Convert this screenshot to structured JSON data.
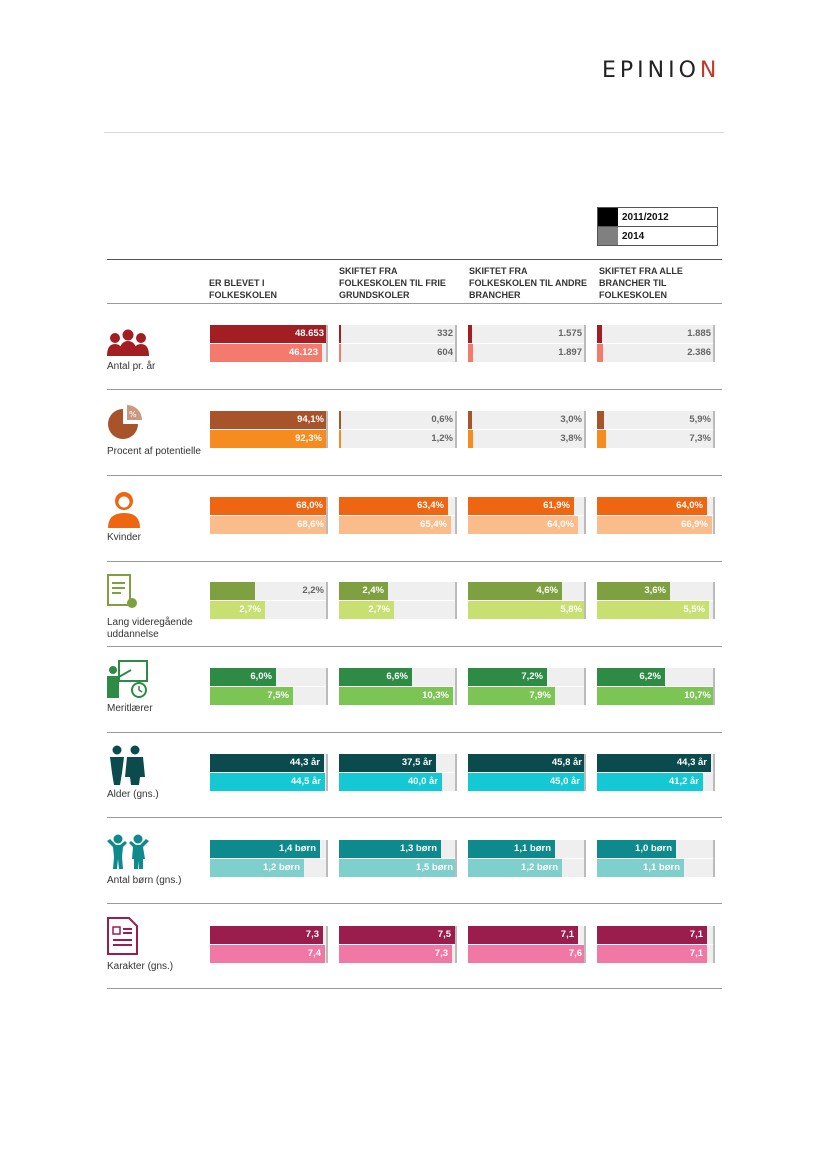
{
  "logo": {
    "text": "EPINIO",
    "last": "N"
  },
  "legend": [
    {
      "label": "2011/2012",
      "color": "#000000"
    },
    {
      "label": "2014",
      "color": "#808080"
    }
  ],
  "columns": [
    "ER BLEVET I FOLKESKOLEN",
    "SKIFTET FRA FOLKESKOLEN TIL FRIE GRUNDSKOLER",
    "SKIFTET FRA FOLKESKOLEN TIL ANDRE BRANCHER",
    "SKIFTET FRA ALLE BRANCHER TIL FOLKESKOLEN"
  ],
  "chart_data": {
    "type": "bar",
    "categories": [
      "ER BLEVET I FOLKESKOLEN",
      "SKIFTET FRA FOLKESKOLEN TIL FRIE GRUNDSKOLER",
      "SKIFTET FRA FOLKESKOLEN TIL ANDRE BRANCHER",
      "SKIFTET FRA ALLE BRANCHER TIL FOLKESKOLEN"
    ],
    "legend": [
      "2011/2012",
      "2014"
    ],
    "rows": [
      {
        "label": "Antal pr. år",
        "icon": "people-group-icon",
        "colors": [
          "#a31e22",
          "#f47a6e"
        ],
        "values": [
          [
            48653,
            46123
          ],
          [
            332,
            604
          ],
          [
            1575,
            1897
          ],
          [
            1885,
            2386
          ]
        ],
        "labels": [
          [
            "48.653",
            "46.123"
          ],
          [
            "332",
            "604"
          ],
          [
            "1.575",
            "1.897"
          ],
          [
            "1.885",
            "2.386"
          ]
        ],
        "max": 48653
      },
      {
        "label": "Procent af potentielle",
        "icon": "pie-percent-icon",
        "colors": [
          "#a9532b",
          "#f68b1f"
        ],
        "values": [
          [
            94.1,
            92.3
          ],
          [
            0.6,
            1.2
          ],
          [
            3.0,
            3.8
          ],
          [
            5.9,
            7.3
          ]
        ],
        "labels": [
          [
            "94,1%",
            "92,3%"
          ],
          [
            "0,6%",
            "1,2%"
          ],
          [
            "3,0%",
            "3,8%"
          ],
          [
            "5,9%",
            "7,3%"
          ]
        ],
        "max": 94.1
      },
      {
        "label": "Kvinder",
        "icon": "woman-icon",
        "colors": [
          "#ee6611",
          "#f9bc8a"
        ],
        "values": [
          [
            68.0,
            68.6
          ],
          [
            63.4,
            65.4
          ],
          [
            61.9,
            64.0
          ],
          [
            64.0,
            66.9
          ]
        ],
        "labels": [
          [
            "68,0%",
            "68,6%"
          ],
          [
            "63,4%",
            "65,4%"
          ],
          [
            "61,9%",
            "64,0%"
          ],
          [
            "64,0%",
            "66,9%"
          ]
        ],
        "max": 68.6
      },
      {
        "label": "Lang videregående uddannelse",
        "icon": "diploma-icon",
        "colors": [
          "#7fa040",
          "#c8df72"
        ],
        "values": [
          [
            2.2,
            2.7
          ],
          [
            2.4,
            2.7
          ],
          [
            4.6,
            5.8
          ],
          [
            3.6,
            5.5
          ]
        ],
        "labels": [
          [
            "2,2%",
            "2,7%"
          ],
          [
            "2,4%",
            "2,7%"
          ],
          [
            "4,6%",
            "5,8%"
          ],
          [
            "3,6%",
            "5,5%"
          ]
        ],
        "max": 5.8
      },
      {
        "label": "Meritlærer",
        "icon": "teacher-board-icon",
        "colors": [
          "#2e8b45",
          "#7cc554"
        ],
        "values": [
          [
            6.0,
            7.5
          ],
          [
            6.6,
            10.3
          ],
          [
            7.2,
            7.9
          ],
          [
            6.2,
            10.7
          ]
        ],
        "labels": [
          [
            "6,0%",
            "7,5%"
          ],
          [
            "6,6%",
            "10,3%"
          ],
          [
            "7,2%",
            "7,9%"
          ],
          [
            "6,2%",
            "10,7%"
          ]
        ],
        "max": 10.7
      },
      {
        "label": "Alder (gns.)",
        "icon": "elderly-couple-icon",
        "colors": [
          "#0b4a4d",
          "#14c8d4"
        ],
        "values": [
          [
            44.3,
            44.5
          ],
          [
            37.5,
            40.0
          ],
          [
            45.8,
            45.0
          ],
          [
            44.3,
            41.2
          ]
        ],
        "labels": [
          [
            "44,3 år",
            "44,5 år"
          ],
          [
            "37,5 år",
            "40,0 år"
          ],
          [
            "45,8 år",
            "45,0 år"
          ],
          [
            "44,3 år",
            "41,2 år"
          ]
        ],
        "max": 45.8
      },
      {
        "label": "Antal børn (gns.)",
        "icon": "children-icon",
        "colors": [
          "#0e8a8c",
          "#7fcfcc"
        ],
        "values": [
          [
            1.4,
            1.2
          ],
          [
            1.3,
            1.5
          ],
          [
            1.1,
            1.2
          ],
          [
            1.0,
            1.1
          ]
        ],
        "labels": [
          [
            "1,4 børn",
            "1,2 børn"
          ],
          [
            "1,3 børn",
            "1,5 børn"
          ],
          [
            "1,1 børn",
            "1,2 børn"
          ],
          [
            "1,0 børn",
            "1,1 børn"
          ]
        ],
        "max": 1.5
      },
      {
        "label": "Karakter (gns.)",
        "icon": "grade-sheet-icon",
        "colors": [
          "#9b1d4e",
          "#f178a4"
        ],
        "values": [
          [
            7.3,
            7.4
          ],
          [
            7.5,
            7.3
          ],
          [
            7.1,
            7.6
          ],
          [
            7.1,
            7.1
          ]
        ],
        "labels": [
          [
            "7,3",
            "7,4"
          ],
          [
            "7,5",
            "7,3"
          ],
          [
            "7,1",
            "7,6"
          ],
          [
            "7,1",
            "7,1"
          ]
        ],
        "max": 7.6
      }
    ]
  }
}
